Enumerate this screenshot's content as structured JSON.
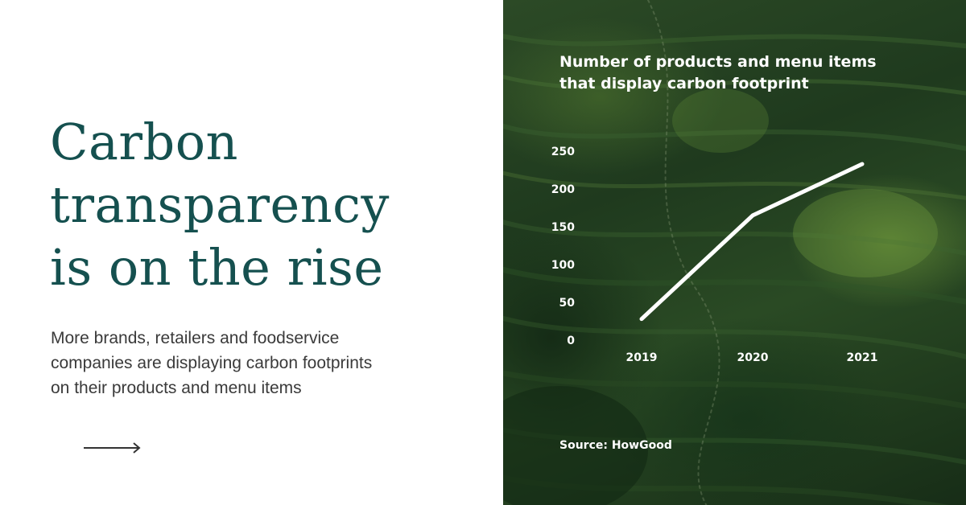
{
  "headline": {
    "lines": [
      "Carbon",
      "transparency",
      "is on the rise"
    ]
  },
  "subtext": {
    "lines": [
      "More brands, retailers and foodservice",
      "companies are displaying carbon footprints",
      "on their products and menu items"
    ]
  },
  "colors": {
    "headline": "#15504f",
    "line": "#ffffff",
    "text": "#3a3a3a"
  },
  "arrow_icon": "arrow-right-icon",
  "chart_data": {
    "type": "line",
    "title_lines": [
      "Number of products and menu items",
      "that display carbon footprint"
    ],
    "x": [
      "2019",
      "2020",
      "2021"
    ],
    "series": [
      {
        "values": [
          28,
          165,
          233
        ]
      }
    ],
    "yticks": [
      "250",
      "200",
      "150",
      "100",
      "50",
      "0"
    ],
    "ylim": [
      0,
      250
    ],
    "grid": false,
    "legend": "none",
    "source": "Source: HowGood"
  }
}
